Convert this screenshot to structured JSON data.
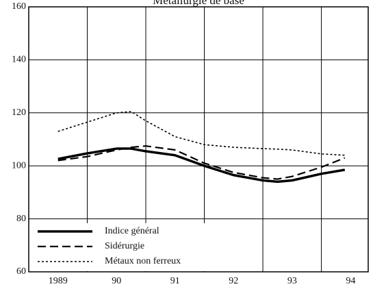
{
  "chart_data": {
    "type": "line",
    "title": "Métallurgie de base",
    "xlim": [
      1989,
      1994.8
    ],
    "xticks": [
      1989,
      1990,
      1991,
      1992,
      1993,
      1994
    ],
    "xtick_labels": [
      {
        "value": 1989.5,
        "label": "1989"
      },
      {
        "value": 1990.5,
        "label": "90"
      },
      {
        "value": 1991.5,
        "label": "91"
      },
      {
        "value": 1992.5,
        "label": "92"
      },
      {
        "value": 1993.5,
        "label": "93"
      },
      {
        "value": 1994.5,
        "label": "94"
      }
    ],
    "ylim": [
      60,
      160
    ],
    "yticks": [
      60,
      80,
      100,
      120,
      140,
      160
    ],
    "grid": true,
    "legend": "lower left",
    "x": [
      1989.5,
      1990,
      1990.5,
      1990.75,
      1991,
      1991.5,
      1992,
      1992.5,
      1993,
      1993.25,
      1993.5,
      1994,
      1994.4
    ],
    "series": [
      {
        "name": "Indice général",
        "color": "#000",
        "style": "solid",
        "width": 3.5,
        "values": [
          102.6,
          104.7,
          106.5,
          106.5,
          105.5,
          104,
          100,
          96.5,
          94.5,
          94,
          94.5,
          97,
          98.5
        ]
      },
      {
        "name": "Sidérurgie",
        "color": "#000",
        "style": "dashed",
        "width": 2.2,
        "values": [
          102,
          103.5,
          106,
          107,
          107.5,
          106,
          101,
          97.5,
          95.5,
          95,
          96,
          99.5,
          103
        ]
      },
      {
        "name": "Métaux non ferreux",
        "color": "#000",
        "style": "dotted",
        "width": 1.6,
        "values": [
          113,
          116.5,
          120,
          120.5,
          117,
          111,
          108,
          107,
          106.5,
          106.3,
          106,
          104.5,
          104
        ]
      }
    ]
  }
}
